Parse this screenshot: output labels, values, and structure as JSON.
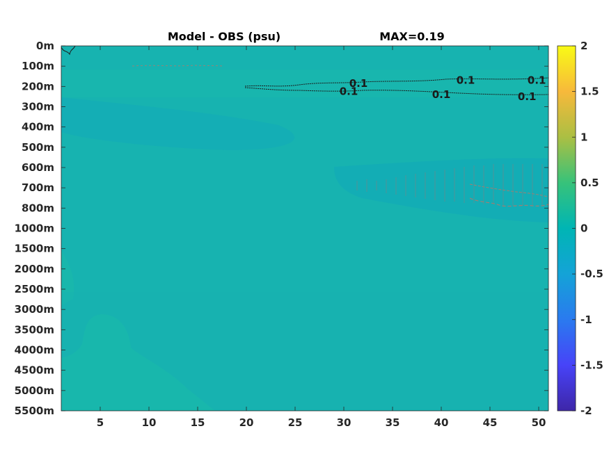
{
  "chart_data": {
    "type": "heatmap",
    "title": "Model - OBS (psu)",
    "annotation": "MAX=0.19",
    "x": {
      "ticks": [
        5,
        10,
        15,
        20,
        25,
        30,
        35,
        40,
        45,
        50
      ],
      "tick_labels": [
        "5",
        "10",
        "15",
        "20",
        "25",
        "30",
        "35",
        "40",
        "45",
        "50"
      ],
      "range": [
        1,
        51
      ]
    },
    "y": {
      "tick_labels": [
        "0m",
        "100m",
        "200m",
        "300m",
        "400m",
        "500m",
        "600m",
        "700m",
        "800m",
        "1000m",
        "1500m",
        "2000m",
        "2500m",
        "3000m",
        "3500m",
        "4000m",
        "4500m",
        "5000m",
        "5500m"
      ],
      "direction": "top-to-bottom"
    },
    "colorbar": {
      "range": [
        -2,
        2
      ],
      "ticks": [
        2,
        1.5,
        1,
        0.5,
        0,
        -0.5,
        -1,
        -1.5,
        -2
      ],
      "tick_labels": [
        "2",
        "1.5",
        "1",
        "0.5",
        "0",
        "-0.5",
        "-1",
        "-1.5",
        "-2"
      ],
      "colormap": "parula"
    },
    "contours": {
      "level": 0.1,
      "labels": [
        {
          "text": "0.1",
          "x": 31.5,
          "depth_index": 1.85
        },
        {
          "text": "0.1",
          "x": 30.5,
          "depth_index": 2.25
        },
        {
          "text": "0.1",
          "x": 42.5,
          "depth_index": 1.7
        },
        {
          "text": "0.1",
          "x": 40.0,
          "depth_index": 2.4
        },
        {
          "text": "0.1",
          "x": 49.8,
          "depth_index": 1.7
        },
        {
          "text": "0.1",
          "x": 48.8,
          "depth_index": 2.5
        }
      ]
    },
    "field_summary": {
      "background_value": 0.0,
      "max_value": 0.19
    }
  }
}
